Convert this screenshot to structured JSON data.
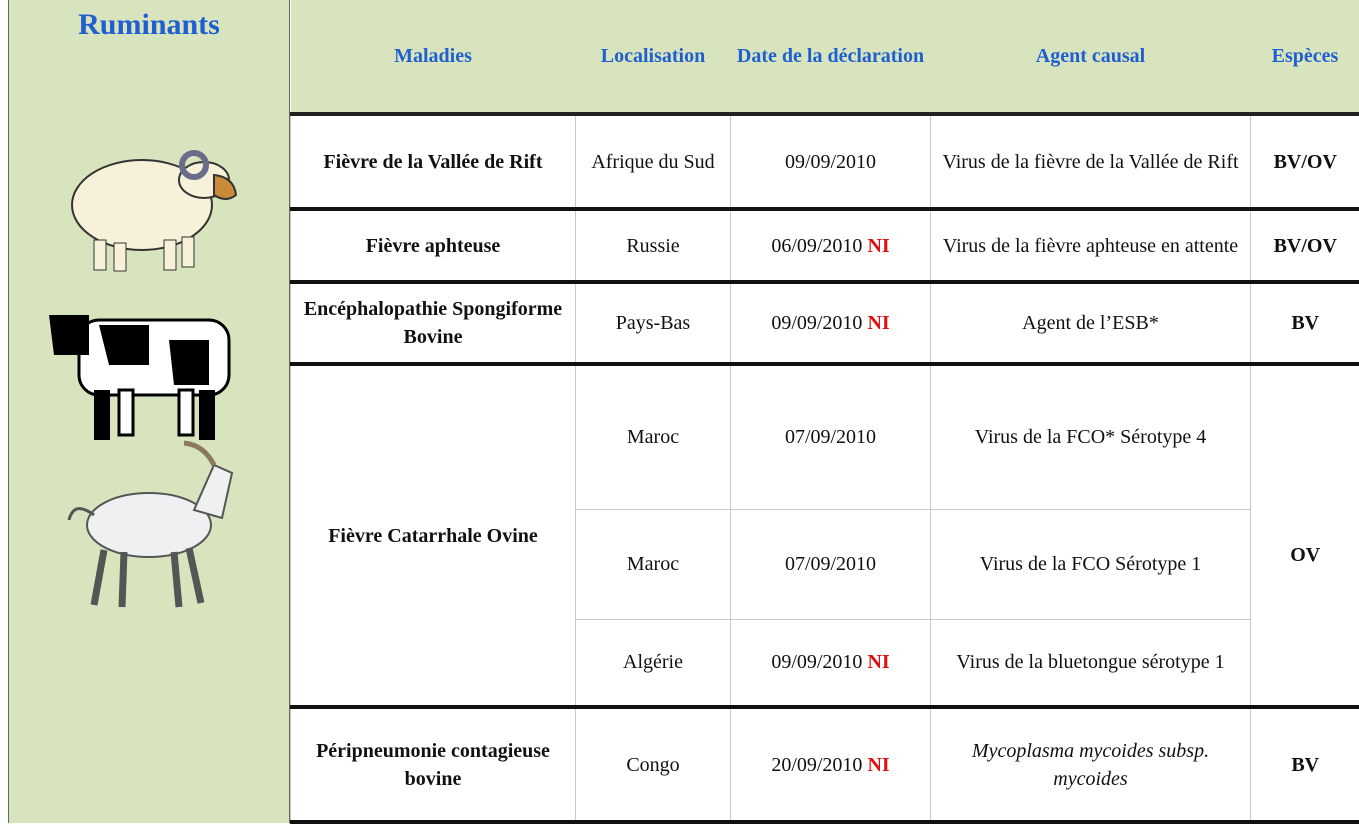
{
  "sidebar": {
    "title": "Ruminants"
  },
  "table": {
    "headers": [
      "Maladies",
      "Localisation",
      "Date de la déclaration",
      "Agent causal",
      "Espèces"
    ],
    "rows": [
      {
        "maladie": "Fièvre de la Vallée de Rift",
        "especes": "BV/OV",
        "entries": [
          {
            "localisation": "Afrique du Sud",
            "date": "09/09/2010",
            "agent": "Virus de la fièvre de la Vallée de Rift"
          }
        ]
      },
      {
        "maladie": "Fièvre aphteuse",
        "especes": "BV/OV",
        "entries": [
          {
            "localisation": "Russie",
            "date": "06/09/2010",
            "flag": "NI",
            "agent": "Virus de la fièvre aphteuse en attente"
          }
        ]
      },
      {
        "maladie": "Encéphalopathie Spongiforme Bovine",
        "especes": "BV",
        "entries": [
          {
            "localisation": "Pays-Bas",
            "date": "09/09/2010",
            "flag": "NI",
            "agent": "Agent de l’ESB*"
          }
        ]
      },
      {
        "maladie": "Fièvre Catarrhale Ovine",
        "especes": "OV",
        "entries": [
          {
            "localisation": "Maroc",
            "date": "07/09/2010",
            "agent": "Virus de la FCO* Sérotype 4"
          },
          {
            "localisation": "Maroc",
            "date": "07/09/2010",
            "agent": "Virus de la FCO Sérotype 1"
          },
          {
            "localisation": "Algérie",
            "date": "09/09/2010",
            "flag": "NI",
            "agent": "Virus de la bluetongue sérotype 1"
          }
        ]
      },
      {
        "maladie": "Péripneumonie contagieuse bovine",
        "especes": "BV",
        "entries": [
          {
            "localisation": "Congo",
            "date": "20/09/2010",
            "flag": "NI",
            "agent": "Mycoplasma mycoides subsp. mycoides",
            "italic": true
          }
        ]
      }
    ]
  }
}
